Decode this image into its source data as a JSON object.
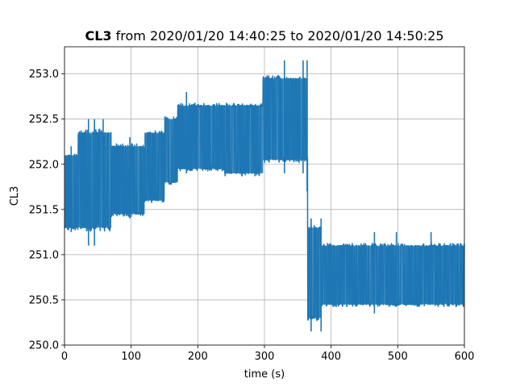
{
  "chart_data": {
    "type": "line",
    "title_bold": "CL3",
    "title_rest": " from 2020/01/20 14:40:25 to 2020/01/20 14:50:25",
    "xlabel": "time (s)",
    "ylabel": "CL3",
    "xlim": [
      0,
      600
    ],
    "ylim": [
      250.0,
      253.3
    ],
    "xticks": [
      0,
      100,
      200,
      300,
      400,
      500,
      600
    ],
    "xtick_labels": [
      "0",
      "100",
      "200",
      "300",
      "400",
      "500",
      "600"
    ],
    "yticks": [
      250.0,
      250.5,
      251.0,
      251.5,
      252.0,
      252.5,
      253.0
    ],
    "ytick_labels": [
      "250.0",
      "250.5",
      "251.0",
      "251.5",
      "252.0",
      "252.5",
      "253.0"
    ],
    "grid": true,
    "series": [
      {
        "color": "#1f77b4",
        "segments": [
          {
            "x_start": 0,
            "x_end": 20,
            "low": 251.3,
            "high": 252.1
          },
          {
            "x_start": 20,
            "x_end": 70,
            "low": 251.3,
            "high": 252.35
          },
          {
            "x_start": 70,
            "x_end": 120,
            "low": 251.45,
            "high": 252.2
          },
          {
            "x_start": 120,
            "x_end": 150,
            "low": 251.6,
            "high": 252.35
          },
          {
            "x_start": 150,
            "x_end": 170,
            "low": 251.8,
            "high": 252.5
          },
          {
            "x_start": 170,
            "x_end": 240,
            "low": 251.95,
            "high": 252.65
          },
          {
            "x_start": 240,
            "x_end": 298,
            "low": 251.9,
            "high": 252.65
          },
          {
            "x_start": 298,
            "x_end": 365,
            "low": 252.05,
            "high": 252.95
          },
          {
            "x_start": 365,
            "x_end": 385,
            "low": 250.3,
            "high": 251.3
          },
          {
            "x_start": 385,
            "x_end": 600,
            "low": 250.45,
            "high": 251.1
          }
        ],
        "spikes": [
          {
            "x": 10,
            "low": 251.25,
            "high": 252.2
          },
          {
            "x": 36,
            "low": 251.1,
            "high": 252.5
          },
          {
            "x": 45,
            "low": 251.1,
            "high": 252.5
          },
          {
            "x": 58,
            "low": 251.3,
            "high": 252.5
          },
          {
            "x": 98,
            "low": 251.4,
            "high": 252.3
          },
          {
            "x": 183,
            "low": 251.9,
            "high": 252.8
          },
          {
            "x": 330,
            "low": 251.9,
            "high": 253.15
          },
          {
            "x": 358,
            "low": 251.9,
            "high": 253.15
          },
          {
            "x": 364,
            "low": 251.7,
            "high": 253.15
          },
          {
            "x": 370,
            "low": 250.15,
            "high": 251.4
          },
          {
            "x": 385,
            "low": 250.15,
            "high": 251.4
          },
          {
            "x": 465,
            "low": 250.35,
            "high": 251.25
          },
          {
            "x": 498,
            "low": 250.45,
            "high": 251.25
          },
          {
            "x": 550,
            "low": 250.45,
            "high": 251.25
          }
        ]
      }
    ]
  }
}
